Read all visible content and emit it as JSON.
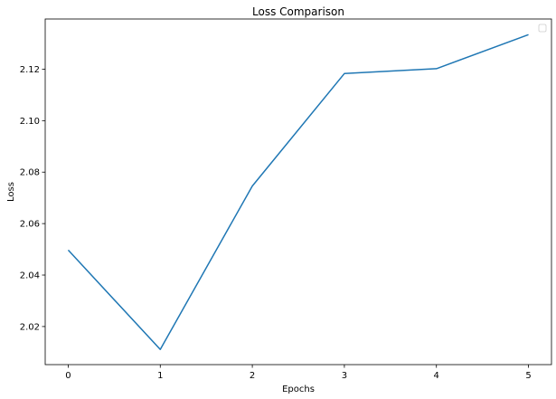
{
  "chart_data": {
    "type": "line",
    "title": "Loss Comparison",
    "xlabel": "Epochs",
    "ylabel": "Loss",
    "x": [
      0,
      1,
      2,
      3,
      4,
      5
    ],
    "x_tick_labels": [
      "0",
      "1",
      "2",
      "3",
      "4",
      "5"
    ],
    "xlim": [
      -0.25,
      5.25
    ],
    "ylim": [
      2.0052,
      2.1395
    ],
    "y_ticks": [
      2.02,
      2.04,
      2.06,
      2.08,
      2.1,
      2.12
    ],
    "y_tick_labels": [
      "2.02",
      "2.04",
      "2.06",
      "2.08",
      "2.10",
      "2.12"
    ],
    "series": [
      {
        "name": "loss",
        "values": [
          2.0497,
          2.0111,
          2.0746,
          2.1183,
          2.1202,
          2.1334
        ],
        "color": "#1f77b4"
      }
    ],
    "legend": {
      "placement": "top-right",
      "entries": []
    },
    "grid": false
  }
}
